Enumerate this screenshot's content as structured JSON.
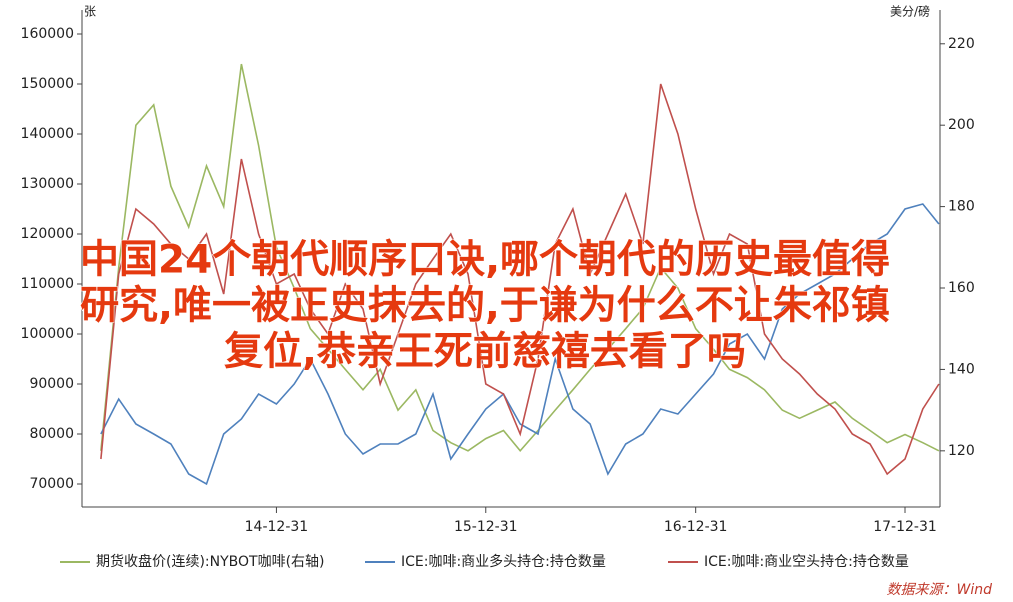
{
  "chart_data": {
    "type": "line",
    "y_unit_label": "张",
    "y2_unit_label": "美分/磅",
    "x": [
      "14-02-28",
      "14-03-31",
      "14-04-30",
      "14-05-31",
      "14-06-30",
      "14-07-31",
      "14-08-31",
      "14-09-30",
      "14-10-31",
      "14-11-30",
      "14-12-31",
      "15-01-31",
      "15-02-28",
      "15-03-31",
      "15-04-30",
      "15-05-31",
      "15-06-30",
      "15-07-31",
      "15-08-31",
      "15-09-30",
      "15-10-31",
      "15-11-30",
      "15-12-31",
      "16-01-31",
      "16-02-29",
      "16-03-31",
      "16-04-30",
      "16-05-31",
      "16-06-30",
      "16-07-31",
      "16-08-31",
      "16-09-30",
      "16-10-31",
      "16-11-30",
      "16-12-31",
      "17-01-31",
      "17-02-28",
      "17-03-31",
      "17-04-30",
      "17-05-31",
      "17-06-30",
      "17-07-31",
      "17-08-31",
      "17-09-30",
      "17-10-31",
      "17-11-30",
      "17-12-31",
      "18-01-31",
      "18-02-28"
    ],
    "xlim": [
      "14-01-26",
      "18-03-02"
    ],
    "xticks": [
      "14-12-31",
      "15-12-31",
      "16-12-31",
      "17-12-31"
    ],
    "ylim": [
      65400,
      164800
    ],
    "yticks": [
      70000,
      80000,
      90000,
      100000,
      110000,
      120000,
      130000,
      140000,
      150000,
      160000
    ],
    "y2lim": [
      106.2,
      228.3
    ],
    "y2ticks": [
      120,
      140,
      160,
      180,
      200,
      220
    ],
    "series": [
      {
        "name": "期货收盘价(连续):NYBOT咖啡(右轴)",
        "color": "#9bb862",
        "axis": "y2",
        "values": [
          120,
          165,
          200,
          205,
          185,
          175,
          190,
          180,
          215,
          195,
          170,
          160,
          150,
          145,
          140,
          135,
          140,
          130,
          135,
          125,
          122,
          120,
          123,
          125,
          120,
          125,
          130,
          135,
          140,
          145,
          150,
          155,
          165,
          160,
          150,
          145,
          140,
          138,
          135,
          130,
          128,
          130,
          132,
          128,
          125,
          122,
          124,
          122,
          120
        ]
      },
      {
        "name": "ICE:咖啡:商业多头持仓:持仓数量",
        "color": "#4f81bd",
        "values": [
          80000,
          87000,
          82000,
          80000,
          78000,
          72000,
          70000,
          80000,
          83000,
          88000,
          86000,
          90000,
          95000,
          88000,
          80000,
          76000,
          78000,
          78000,
          80000,
          88000,
          75000,
          80000,
          85000,
          88000,
          82000,
          80000,
          95000,
          85000,
          82000,
          72000,
          78000,
          80000,
          85000,
          84000,
          88000,
          92000,
          98000,
          100000,
          95000,
          105000,
          108000,
          110000,
          112000,
          115000,
          118000,
          120000,
          125000,
          126000,
          122000
        ]
      },
      {
        "name": "ICE:咖啡:商业空头持仓:持仓数量",
        "color": "#c0504d",
        "values": [
          75000,
          112000,
          125000,
          122000,
          118000,
          115000,
          120000,
          108000,
          135000,
          120000,
          110000,
          112000,
          105000,
          100000,
          110000,
          105000,
          90000,
          100000,
          110000,
          115000,
          120000,
          112000,
          90000,
          88000,
          80000,
          95000,
          118000,
          125000,
          112000,
          120000,
          128000,
          118000,
          150000,
          140000,
          125000,
          112000,
          120000,
          118000,
          100000,
          95000,
          92000,
          88000,
          85000,
          80000,
          78000,
          72000,
          75000,
          85000,
          90000
        ]
      }
    ],
    "source": "数据来源：Wind"
  },
  "overlay": {
    "lines": [
      "中国24个朝代顺序口诀,哪个朝代的历史最值得",
      "研究,唯一被正史抹去的,于谦为什么不让朱祁镇",
      "复位,恭亲王死前慈禧去看了吗"
    ]
  }
}
